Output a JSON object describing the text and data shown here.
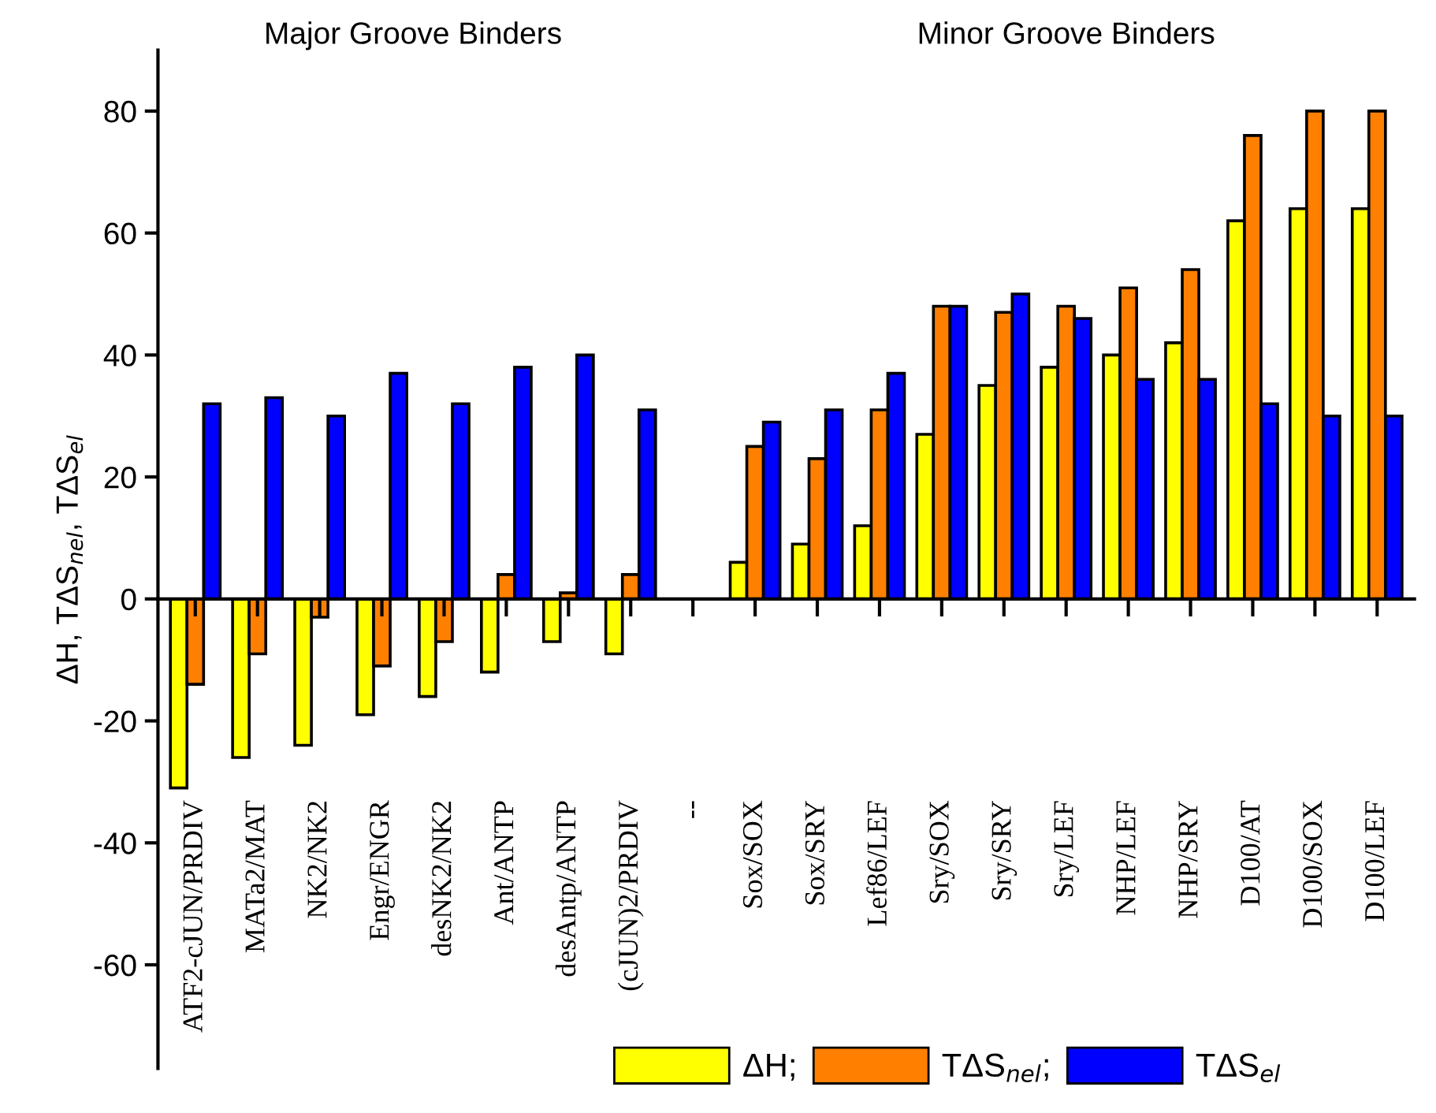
{
  "chart_data": {
    "type": "bar",
    "ylabel": "ΔH, TΔS$_{nel}$, TΔS$_{el}$",
    "annotations": [
      "Major Groove Binders",
      "Minor Groove Binders"
    ],
    "categories": [
      "ATF2-cJUN/PRDIV",
      "MATa2/MAT",
      "NK2/NK2",
      "Engr/ENGR",
      "desNK2/NK2",
      "Ant/ANTP",
      "desAntp/ANTP",
      "(cJUN)2/PRDIV",
      "--",
      "Sox/SOX",
      "Sox/SRY",
      "Lef86/LEF",
      "Sry/SOX",
      "Sry/SRY",
      "Sry/LEF",
      "NHP/LEF",
      "NHP/SRY",
      "D100/AT",
      "D100/SOX",
      "D100/LEF"
    ],
    "series": [
      {
        "name": "ΔH;",
        "color": "#ffff00",
        "values": [
          -31,
          -26,
          -24,
          -19,
          -16,
          -12,
          -7,
          -9,
          null,
          6,
          9,
          12,
          27,
          35,
          38,
          40,
          42,
          62,
          64,
          64
        ]
      },
      {
        "name": "TΔS$_{nel}$;",
        "color": "#ff8000",
        "values": [
          -14,
          -9,
          -3,
          -11,
          -7,
          4,
          1,
          4,
          null,
          25,
          23,
          31,
          48,
          47,
          48,
          51,
          54,
          76,
          80,
          80
        ]
      },
      {
        "name": "TΔS$_{el}$",
        "color": "#0000ff",
        "values": [
          32,
          33,
          30,
          37,
          32,
          38,
          40,
          31,
          null,
          29,
          31,
          37,
          48,
          50,
          46,
          36,
          36,
          32,
          30,
          30
        ]
      }
    ],
    "ylim": [
      -77,
      90
    ],
    "yticks": [
      -60,
      -40,
      -20,
      0,
      20,
      40,
      60,
      80
    ],
    "legend": "bottom"
  }
}
